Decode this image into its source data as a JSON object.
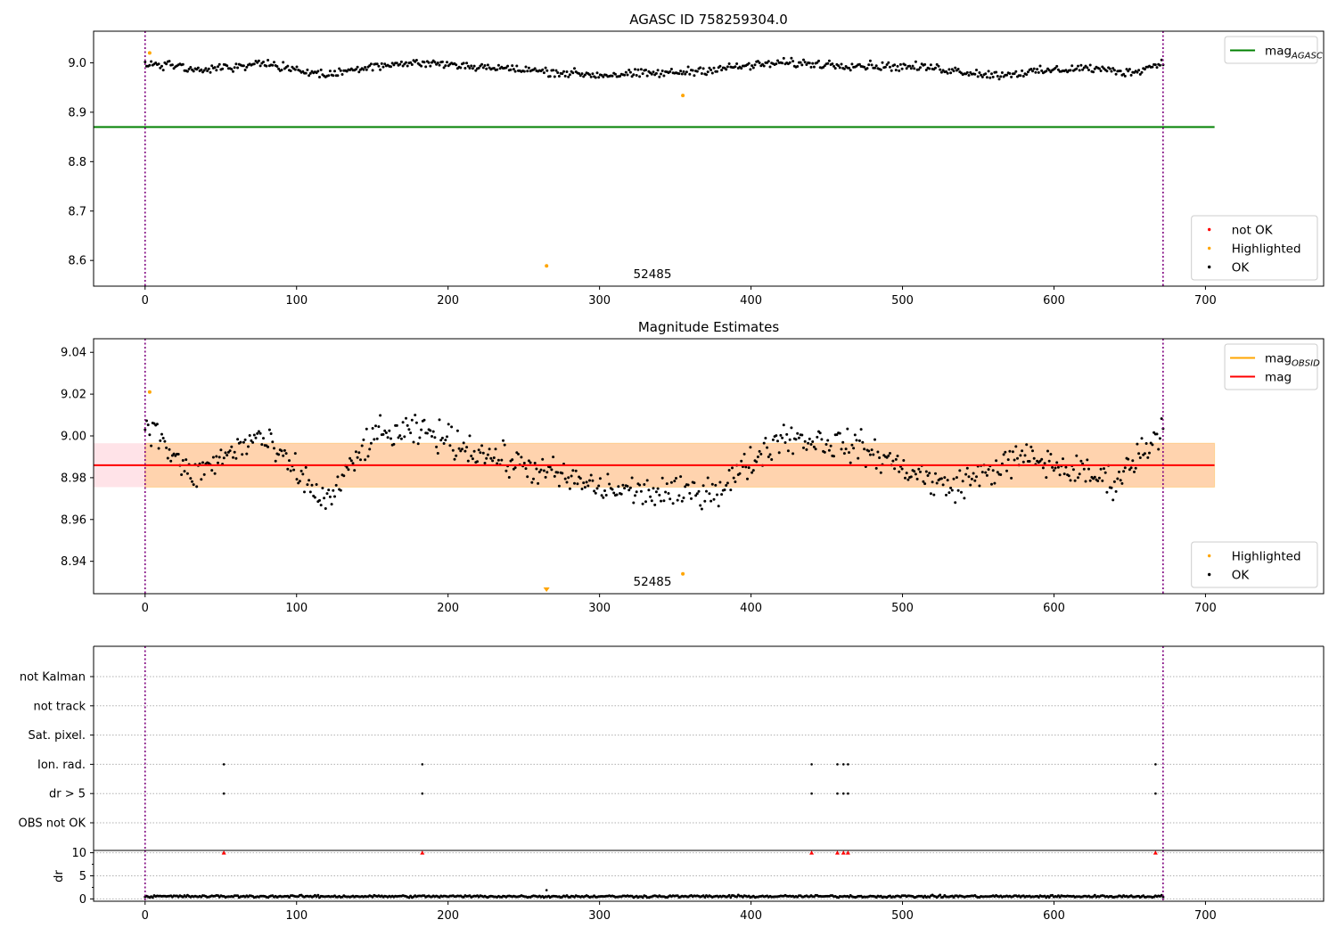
{
  "chart_data": [
    {
      "type": "scatter",
      "title": "AGASC ID 758259304.0",
      "xlabel": "",
      "ylabel": "",
      "xlim": [
        -34,
        778
      ],
      "ylim": [
        8.548,
        9.064
      ],
      "xticks": [
        0,
        100,
        200,
        300,
        400,
        500,
        600,
        700
      ],
      "yticks": [
        8.6,
        8.7,
        8.8,
        8.9,
        9.0
      ],
      "ytick_labels": [
        "8.6",
        "8.7",
        "8.8",
        "8.9",
        "9.0"
      ],
      "grid": false,
      "vertical_markers_x": [
        0,
        672
      ],
      "reference_lines": [
        {
          "name": "mag_AGASC",
          "y": 8.87,
          "x_range": [
            -34,
            706
          ],
          "color": "#008000"
        }
      ],
      "series": [
        {
          "name": "not OK",
          "color": "#ff0000",
          "points": []
        },
        {
          "name": "Highlighted",
          "color": "#ffa500",
          "points": [
            [
              3,
              9.02
            ],
            [
              265,
              8.589
            ],
            [
              355,
              8.934
            ]
          ]
        },
        {
          "name": "OK",
          "color": "#000000",
          "n_points": 672,
          "x_range": [
            0,
            672
          ],
          "baseline": 8.987,
          "amplitude": 0.013,
          "anchors": [
            [
              0,
              9.0
            ],
            [
              40,
              8.985
            ],
            [
              75,
              9.0
            ],
            [
              120,
              8.975
            ],
            [
              150,
              8.995
            ],
            [
              185,
              9.0
            ],
            [
              230,
              8.99
            ],
            [
              300,
              8.975
            ],
            [
              350,
              8.98
            ],
            [
              420,
              9.0
            ],
            [
              520,
              8.99
            ],
            [
              560,
              8.975
            ],
            [
              620,
              8.99
            ],
            [
              650,
              8.98
            ],
            [
              672,
              9.0
            ]
          ]
        }
      ],
      "annotations": [
        {
          "text": "52485",
          "x": 334,
          "y": 8.57
        }
      ],
      "legends": [
        {
          "position": "top-right",
          "entries": [
            {
              "label": "mag",
              "sub": "AGASC",
              "style": "line",
              "color": "#008000"
            }
          ]
        },
        {
          "position": "bottom-right",
          "entries": [
            {
              "label": "not OK",
              "style": "dot",
              "color": "#ff0000"
            },
            {
              "label": "Highlighted",
              "style": "dot",
              "color": "#ffa500"
            },
            {
              "label": "OK",
              "style": "dot",
              "color": "#000000"
            }
          ]
        }
      ]
    },
    {
      "type": "scatter",
      "title": "Magnitude Estimates",
      "xlabel": "",
      "ylabel": "",
      "xlim": [
        -34,
        778
      ],
      "ylim": [
        8.9245,
        9.0465
      ],
      "xticks": [
        0,
        100,
        200,
        300,
        400,
        500,
        600,
        700
      ],
      "yticks": [
        8.94,
        8.96,
        8.98,
        9.0,
        9.02,
        9.04
      ],
      "ytick_labels": [
        "8.94",
        "8.96",
        "8.98",
        "9.00",
        "9.02",
        "9.04"
      ],
      "grid": false,
      "vertical_markers_x": [
        0,
        672
      ],
      "bands": [
        {
          "y_range": [
            8.9755,
            8.9965
          ],
          "x_range": [
            -34,
            706
          ],
          "color": "#ffc0cb",
          "opacity": 0.45
        },
        {
          "y_range": [
            8.9755,
            8.9965
          ],
          "x_range": [
            0,
            706
          ],
          "color": "#ffa500",
          "opacity": 0.25
        }
      ],
      "reference_lines": [
        {
          "name": "mag",
          "y": 8.986,
          "x_range": [
            -34,
            706
          ],
          "color": "#ff0000"
        }
      ],
      "series": [
        {
          "name": "Highlighted",
          "color": "#ffa500",
          "points": [
            [
              3,
              9.021
            ],
            [
              355,
              8.934
            ]
          ]
        },
        {
          "name": "Highlighted (off-scale)",
          "color": "#ffa500",
          "marker": "triangle-down",
          "points": [
            [
              265,
              8.9245
            ]
          ]
        },
        {
          "name": "OK",
          "color": "#000000",
          "n_points": 672,
          "x_range": [
            0,
            672
          ],
          "baseline": 8.986,
          "amplitude": 0.011,
          "anchors": [
            [
              0,
              9.008
            ],
            [
              30,
              8.98
            ],
            [
              75,
              9.0
            ],
            [
              120,
              8.968
            ],
            [
              150,
              9.0
            ],
            [
              185,
              9.002
            ],
            [
              230,
              8.99
            ],
            [
              300,
              8.975
            ],
            [
              350,
              8.972
            ],
            [
              380,
              8.975
            ],
            [
              420,
              9.0
            ],
            [
              470,
              8.995
            ],
            [
              530,
              8.975
            ],
            [
              580,
              8.99
            ],
            [
              640,
              8.978
            ],
            [
              672,
              9.004
            ]
          ]
        }
      ],
      "annotations": [
        {
          "text": "52485",
          "x": 334,
          "y": 8.9285
        }
      ],
      "legends": [
        {
          "position": "top-right",
          "entries": [
            {
              "label": "mag",
              "sub": "OBSID",
              "style": "line",
              "color": "#ffa500"
            },
            {
              "label": "mag",
              "sub": "",
              "style": "line",
              "color": "#ff0000"
            }
          ]
        },
        {
          "position": "bottom-right",
          "entries": [
            {
              "label": "Highlighted",
              "style": "dot",
              "color": "#ffa500"
            },
            {
              "label": "OK",
              "style": "dot",
              "color": "#000000"
            }
          ]
        }
      ]
    },
    {
      "type": "scatter",
      "title": "",
      "xlabel": "",
      "ylabel": "",
      "xlim": [
        -34,
        778
      ],
      "category_rows": [
        "not Kalman",
        "not track",
        "Sat. pixel.",
        "Ion. rad.",
        "dr > 5",
        "OBS not OK"
      ],
      "grid": "horizontal dotted",
      "vertical_markers_x": [
        0,
        672
      ],
      "flags": {
        "not Kalman": [],
        "not track": [],
        "Sat. pixel.": [],
        "Ion. rad.": [
          52,
          183,
          440,
          457,
          461,
          464,
          667
        ],
        "dr > 5": [
          52,
          183,
          440,
          457,
          461,
          464,
          667
        ],
        "OBS not OK": []
      }
    },
    {
      "type": "scatter",
      "title": "",
      "xlabel": "",
      "ylabel": "dr",
      "xlim": [
        -34,
        778
      ],
      "ylim": [
        -0.5,
        10.5
      ],
      "xticks": [
        0,
        100,
        200,
        300,
        400,
        500,
        600,
        700
      ],
      "yticks": [
        0,
        5,
        10
      ],
      "ytick_labels": [
        "0",
        "5",
        "10"
      ],
      "grid": "horizontal dotted",
      "vertical_markers_x": [
        0,
        672
      ],
      "series": [
        {
          "name": "dr",
          "color": "#000000",
          "n_points": 672,
          "x_range": [
            0,
            672
          ],
          "baseline": 0.55,
          "amplitude": 0.35
        },
        {
          "name": "dr outlier",
          "color": "#000000",
          "points": [
            [
              265,
              1.9
            ]
          ]
        },
        {
          "name": "dr > 5 (clipped)",
          "color": "#ff0000",
          "marker": "triangle-up",
          "points": [
            [
              52,
              10
            ],
            [
              183,
              10
            ],
            [
              440,
              10
            ],
            [
              457,
              10
            ],
            [
              461,
              10
            ],
            [
              464,
              10
            ],
            [
              667,
              10
            ]
          ]
        }
      ]
    }
  ]
}
